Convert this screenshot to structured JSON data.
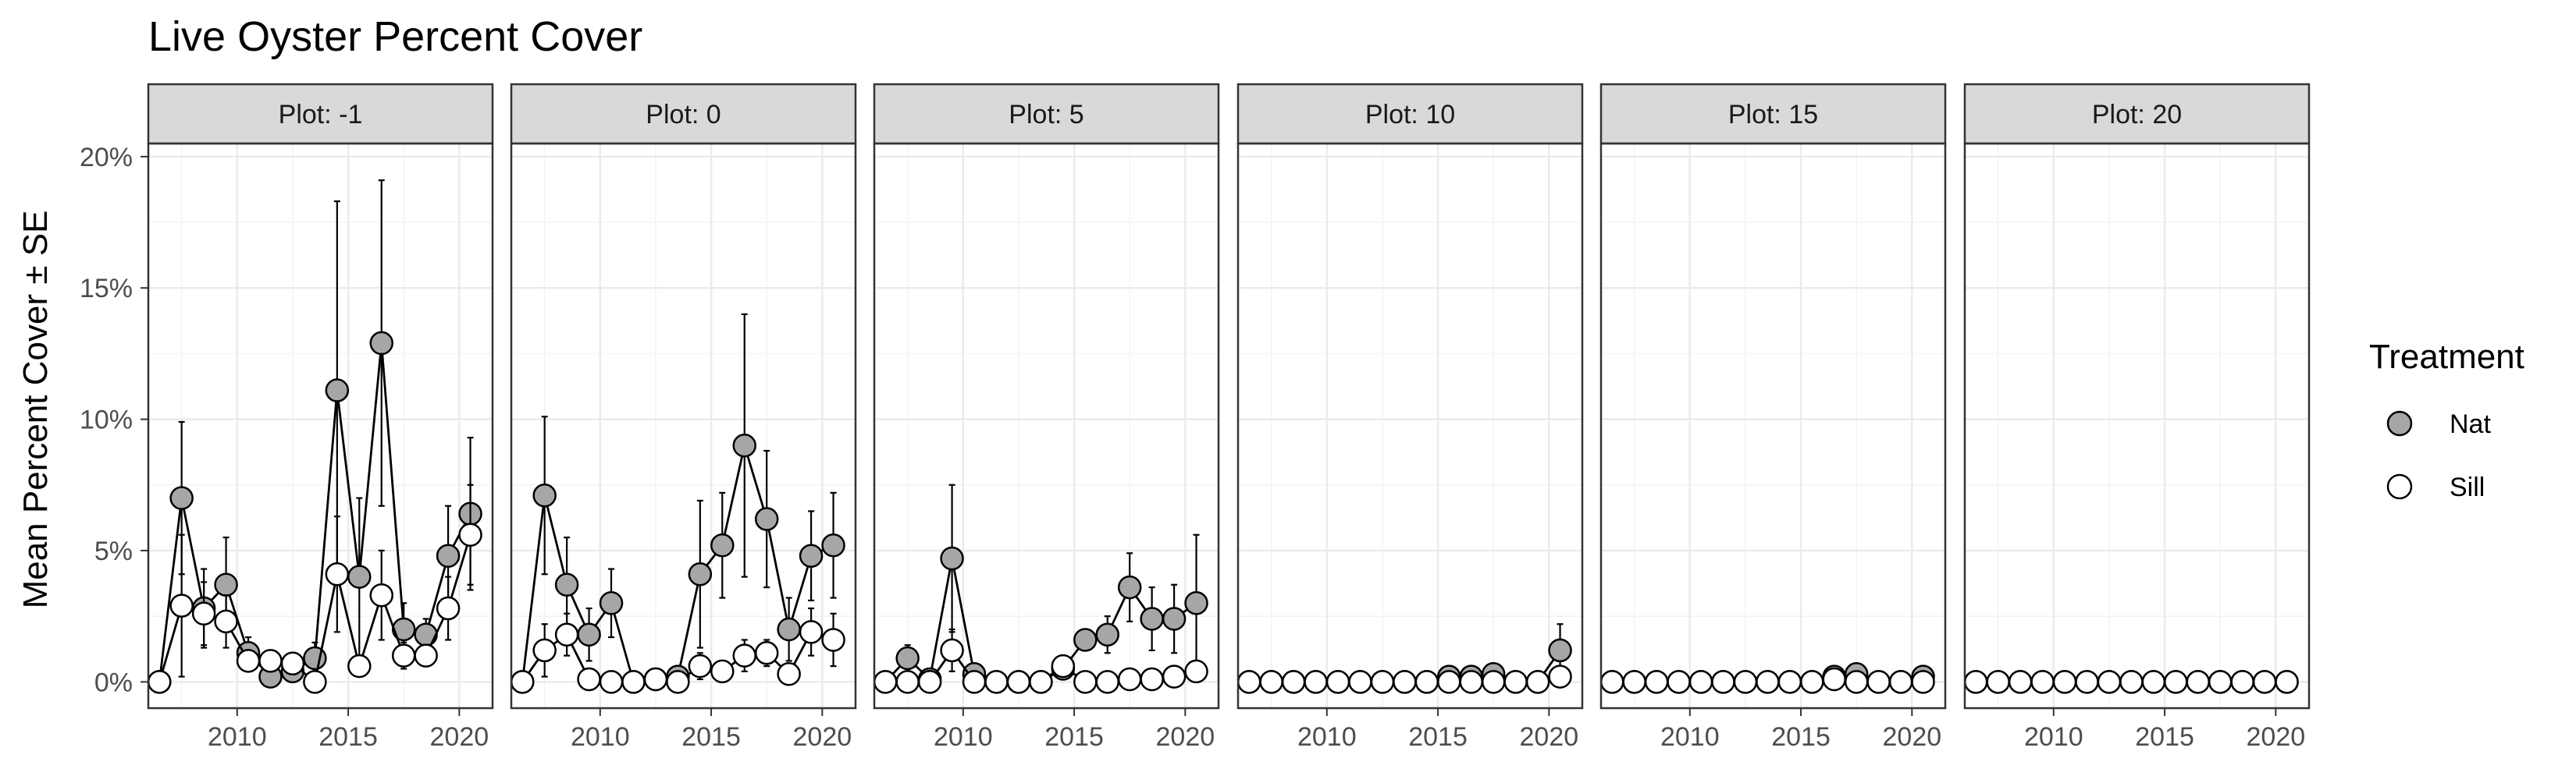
{
  "chart_data": {
    "type": "line",
    "title": "Live Oyster Percent Cover",
    "ylabel": "Mean Percent Cover ± SE",
    "xlabel": "",
    "xlim": [
      2006,
      2021.5
    ],
    "ylim": [
      -1,
      20.5
    ],
    "xticks": [
      2010,
      2015,
      2020
    ],
    "xtick_labels": [
      "2010",
      "2015",
      "2020"
    ],
    "yticks": [
      0,
      5,
      10,
      15,
      20
    ],
    "ytick_labels": [
      "0%",
      "5%",
      "10%",
      "15%",
      "20%"
    ],
    "grid": true,
    "legend": {
      "title": "Treatment",
      "placement": "right",
      "entries": [
        {
          "name": "Nat",
          "fill": "#a6a6a6"
        },
        {
          "name": "Sill",
          "fill": "#ffffff"
        }
      ]
    },
    "colors": {
      "nat": "#a6a6a6",
      "sill": "#ffffff",
      "strip": "#d9d9d9",
      "grid": "#ebebeb",
      "stroke": "#000000"
    },
    "x": [
      2006.5,
      2007.5,
      2008.5,
      2009.5,
      2010.5,
      2011.5,
      2012.5,
      2013.5,
      2014.5,
      2015.5,
      2016.5,
      2017.5,
      2018.5,
      2019.5,
      2020.5
    ],
    "panels": [
      {
        "label": "Plot: -1",
        "series": [
          {
            "name": "Nat",
            "values": [
              0,
              7.0,
              2.8,
              3.7,
              1.1,
              0.2,
              0.4,
              0.9,
              11.1,
              4.0,
              12.9,
              2.0,
              1.8,
              4.8,
              6.4
            ],
            "se": [
              0,
              2.9,
              1.5,
              1.8,
              0.6,
              0.2,
              0.3,
              0.6,
              7.2,
              3.0,
              6.2,
              1.0,
              0.6,
              1.9,
              2.9
            ]
          },
          {
            "name": "Sill",
            "values": [
              0,
              2.9,
              2.6,
              2.3,
              0.8,
              0.8,
              0.7,
              0,
              4.1,
              0.6,
              3.3,
              1.0,
              1.0,
              2.8,
              5.6
            ],
            "se": [
              0,
              2.7,
              1.2,
              1.0,
              0.4,
              0.4,
              0.3,
              0,
              2.2,
              0.2,
              1.7,
              0.5,
              0.4,
              1.2,
              1.9
            ]
          }
        ]
      },
      {
        "label": "Plot: 0",
        "series": [
          {
            "name": "Nat",
            "values": [
              0,
              7.1,
              3.7,
              1.8,
              3.0,
              0,
              0.1,
              0.2,
              4.1,
              5.2,
              9.0,
              6.2,
              2.0,
              4.8,
              5.2
            ],
            "se": [
              0,
              3.0,
              1.8,
              1.0,
              1.3,
              0,
              0.1,
              0.2,
              2.8,
              2.0,
              5.0,
              2.6,
              1.2,
              1.7,
              2.0
            ]
          },
          {
            "name": "Sill",
            "values": [
              0,
              1.2,
              1.8,
              0.1,
              0,
              0,
              0.1,
              0,
              0.6,
              0.4,
              1.0,
              1.1,
              0.3,
              1.9,
              1.6
            ],
            "se": [
              0,
              1.0,
              0.8,
              0.1,
              0,
              0,
              0.1,
              0,
              0.5,
              0.3,
              0.6,
              0.5,
              0.2,
              0.9,
              1.0
            ]
          }
        ]
      },
      {
        "label": "Plot: 5",
        "series": [
          {
            "name": "Nat",
            "values": [
              0,
              0.9,
              0.1,
              4.7,
              0.3,
              0,
              0,
              0,
              0.5,
              1.6,
              1.8,
              3.6,
              2.4,
              2.4,
              3.0
            ],
            "se": [
              0,
              0.5,
              0.1,
              2.8,
              0.3,
              0,
              0,
              0,
              0.4,
              0.4,
              0.7,
              1.3,
              1.2,
              1.3,
              2.6
            ]
          },
          {
            "name": "Sill",
            "values": [
              0,
              0,
              0,
              1.2,
              0,
              0,
              0,
              0,
              0.6,
              0,
              0,
              0.1,
              0.1,
              0.2,
              0.4
            ],
            "se": [
              0,
              0,
              0,
              0.8,
              0,
              0,
              0,
              0,
              0.4,
              0,
              0,
              0.1,
              0.1,
              0.1,
              0.3
            ]
          }
        ]
      },
      {
        "label": "Plot: 10",
        "series": [
          {
            "name": "Nat",
            "values": [
              0,
              0,
              0,
              0,
              0,
              0,
              0,
              0,
              0,
              0.2,
              0.2,
              0.3,
              0,
              0,
              1.2
            ],
            "se": [
              0,
              0,
              0,
              0,
              0,
              0,
              0,
              0,
              0,
              0.1,
              0.1,
              0.1,
              0,
              0,
              1.0
            ]
          },
          {
            "name": "Sill",
            "values": [
              0,
              0,
              0,
              0,
              0,
              0,
              0,
              0,
              0,
              0,
              0,
              0,
              0,
              0,
              0.2
            ],
            "se": [
              0,
              0,
              0,
              0,
              0,
              0,
              0,
              0,
              0,
              0,
              0,
              0,
              0,
              0,
              0.1
            ]
          }
        ]
      },
      {
        "label": "Plot: 15",
        "series": [
          {
            "name": "Nat",
            "values": [
              0,
              0,
              0,
              0,
              0,
              0,
              0,
              0,
              0,
              0,
              0.2,
              0.3,
              0,
              0,
              0.2
            ],
            "se": [
              0,
              0,
              0,
              0,
              0,
              0,
              0,
              0,
              0,
              0,
              0.1,
              0.1,
              0,
              0,
              0.1
            ]
          },
          {
            "name": "Sill",
            "values": [
              0,
              0,
              0,
              0,
              0,
              0,
              0,
              0,
              0,
              0,
              0.1,
              0,
              0,
              0,
              0
            ],
            "se": [
              0,
              0,
              0,
              0,
              0,
              0,
              0,
              0,
              0,
              0,
              0.1,
              0,
              0,
              0,
              0
            ]
          }
        ]
      },
      {
        "label": "Plot: 20",
        "series": [
          {
            "name": "Nat",
            "values": [
              0,
              0,
              0,
              0,
              0,
              0,
              0,
              0,
              0,
              0,
              0,
              0,
              0,
              0,
              0
            ],
            "se": [
              0,
              0,
              0,
              0,
              0,
              0,
              0,
              0,
              0,
              0,
              0,
              0,
              0,
              0,
              0
            ]
          },
          {
            "name": "Sill",
            "values": [
              0,
              0,
              0,
              0,
              0,
              0,
              0,
              0,
              0,
              0,
              0,
              0,
              0,
              0,
              0
            ],
            "se": [
              0,
              0,
              0,
              0,
              0,
              0,
              0,
              0,
              0,
              0,
              0,
              0,
              0,
              0,
              0
            ]
          }
        ]
      }
    ]
  }
}
